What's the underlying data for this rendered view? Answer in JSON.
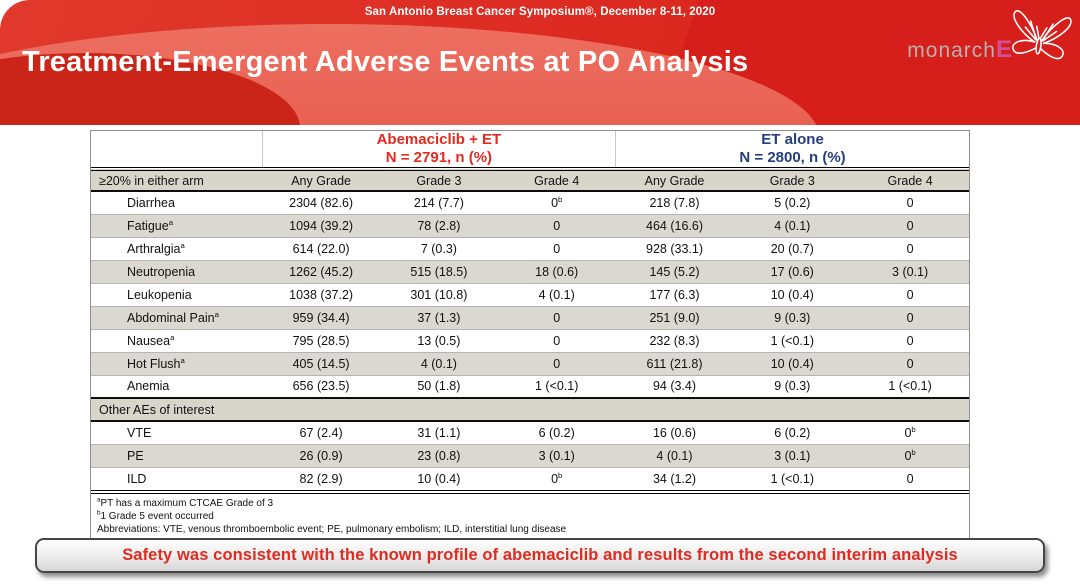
{
  "slide": {
    "symposium": "San Antonio Breast Cancer Symposium®, December 8-11, 2020",
    "title": "Treatment-Emergent Adverse Events at PO Analysis",
    "logo": {
      "monarch": "monarch",
      "e": "E"
    },
    "colors": {
      "banner_red": "#dd2a20",
      "banner_highlight": "#e85c4e",
      "abemaciclib_red": "#e32a1f",
      "et_blue": "#253e7d",
      "row_stripe": "#dbd8d1",
      "header_gray": "#d8d5cb",
      "safety_text_red": "#e02b20"
    }
  },
  "table": {
    "group_headers": [
      {
        "label": "Abemaciclib + ET",
        "n_line": "N = 2791, n (%)"
      },
      {
        "label": "ET alone",
        "n_line": "N = 2800, n (%)"
      }
    ],
    "column_headers": [
      "≥20% in either arm",
      "Any Grade",
      "Grade 3",
      "Grade 4",
      "Any Grade",
      "Grade 3",
      "Grade 4"
    ],
    "rows": [
      {
        "label": "Diarrhea",
        "cells": [
          "2304 (82.6)",
          "214 (7.7)",
          "0^b",
          "218 (7.8)",
          "5 (0.2)",
          "0"
        ]
      },
      {
        "label": "Fatigue^a",
        "cells": [
          "1094 (39.2)",
          "78 (2.8)",
          "0",
          "464 (16.6)",
          "4 (0.1)",
          "0"
        ]
      },
      {
        "label": "Arthralgia^a",
        "cells": [
          "614 (22.0)",
          "7 (0.3)",
          "0",
          "928 (33.1)",
          "20 (0.7)",
          "0"
        ]
      },
      {
        "label": "Neutropenia",
        "cells": [
          "1262 (45.2)",
          "515 (18.5)",
          "18 (0.6)",
          "145 (5.2)",
          "17 (0.6)",
          "3 (0.1)"
        ]
      },
      {
        "label": "Leukopenia",
        "cells": [
          "1038 (37.2)",
          "301 (10.8)",
          "4 (0.1)",
          "177 (6.3)",
          "10 (0.4)",
          "0"
        ]
      },
      {
        "label": "Abdominal Pain^a",
        "cells": [
          "959 (34.4)",
          "37 (1.3)",
          "0",
          "251 (9.0)",
          "9 (0.3)",
          "0"
        ]
      },
      {
        "label": "Nausea^a",
        "cells": [
          "795 (28.5)",
          "13 (0.5)",
          "0",
          "232 (8.3)",
          "1 (<0.1)",
          "0"
        ]
      },
      {
        "label": "Hot Flush^a",
        "cells": [
          "405 (14.5)",
          "4 (0.1)",
          "0",
          "611 (21.8)",
          "10 (0.4)",
          "0"
        ]
      },
      {
        "label": "Anemia",
        "cells": [
          "656 (23.5)",
          "50 (1.8)",
          "1 (<0.1)",
          "94 (3.4)",
          "9 (0.3)",
          "1 (<0.1)"
        ]
      }
    ],
    "section_header": "Other AEs of interest",
    "other_rows": [
      {
        "label": "VTE",
        "cells": [
          "67 (2.4)",
          "31 (1.1)",
          "6 (0.2)",
          "16 (0.6)",
          "6 (0.2)",
          "0^b"
        ]
      },
      {
        "label": "PE",
        "cells": [
          "26 (0.9)",
          "23 (0.8)",
          "3 (0.1)",
          "4 (0.1)",
          "3 (0.1)",
          "0^b"
        ]
      },
      {
        "label": "ILD",
        "cells": [
          "82 (2.9)",
          "10 (0.4)",
          "0^b",
          "34 (1.2)",
          "1 (<0.1)",
          "0"
        ]
      }
    ],
    "footnotes": [
      {
        "sup": "a",
        "text": "PT has a maximum  CTCAE Grade of 3"
      },
      {
        "sup": "b",
        "text": "1 Grade 5 event occurred"
      },
      {
        "sup": "",
        "text": "Abbreviations: VTE, venous thromboembolic event; PE, pulmonary embolism; ILD, interstitial lung disease"
      }
    ]
  },
  "safety_banner": "Safety was consistent with the known profile of abemaciclib and results from the second interim analysis"
}
